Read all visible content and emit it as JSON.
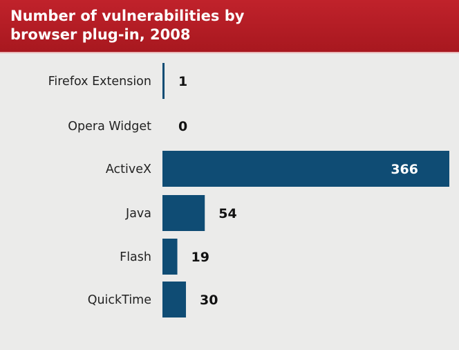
{
  "chart_data": {
    "type": "bar",
    "orientation": "horizontal",
    "title": "Number of vulnerabilities by browser plug-in, 2008",
    "categories": [
      "Firefox Extension",
      "Opera Widget",
      "ActiveX",
      "Java",
      "Flash",
      "QuickTime"
    ],
    "values": [
      1,
      0,
      366,
      54,
      19,
      30
    ],
    "xlim": [
      0,
      366
    ],
    "grid": false,
    "legend": "none",
    "colors": {
      "bar": "#0f4c74",
      "header": "#b81e26",
      "background": "#ebebea"
    }
  }
}
